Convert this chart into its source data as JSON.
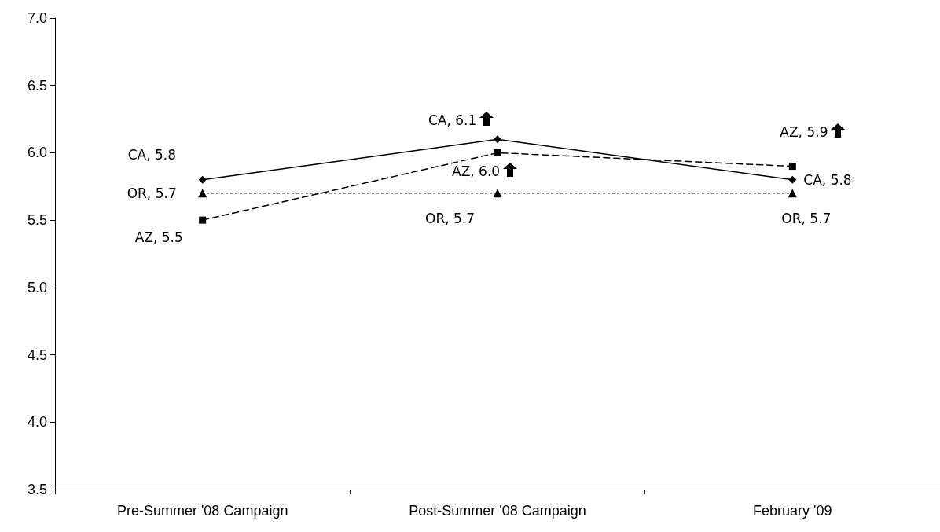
{
  "chart_data": {
    "type": "line",
    "categories": [
      "Pre-Summer '08 Campaign",
      "Post-Summer '08 Campaign",
      "February '09"
    ],
    "series": [
      {
        "color": "#000000",
        "marker": "diamond",
        "line_style": "solid",
        "values": [
          5.8,
          6.1,
          5.8
        ],
        "value_labels": [
          "CA, 5.8",
          "CA, 6.1",
          "CA, 5.8"
        ]
      },
      {
        "color": "#000000",
        "marker": "square",
        "line_style": "dashed",
        "values": [
          5.5,
          6.0,
          5.9
        ],
        "value_labels": [
          "AZ, 5.5",
          "AZ, 6.0",
          "AZ, 5.9"
        ]
      },
      {
        "color": "#000000",
        "marker": "triangle",
        "line_style": "dotted",
        "values": [
          5.7,
          5.7,
          5.7
        ],
        "value_labels": [
          "OR, 5.7",
          "OR, 5.7",
          "OR, 5.7"
        ]
      }
    ],
    "ylim": [
      3.5,
      7.0
    ],
    "yticks": [
      3.5,
      {
        "value": 4,
        "label": "4.0"
      },
      4.5,
      {
        "value": 5,
        "label": "5.0"
      },
      5.5,
      {
        "value": 6,
        "label": "6.0"
      },
      6.5,
      {
        "value": 7,
        "label": "7.0"
      }
    ],
    "grid": false
  }
}
